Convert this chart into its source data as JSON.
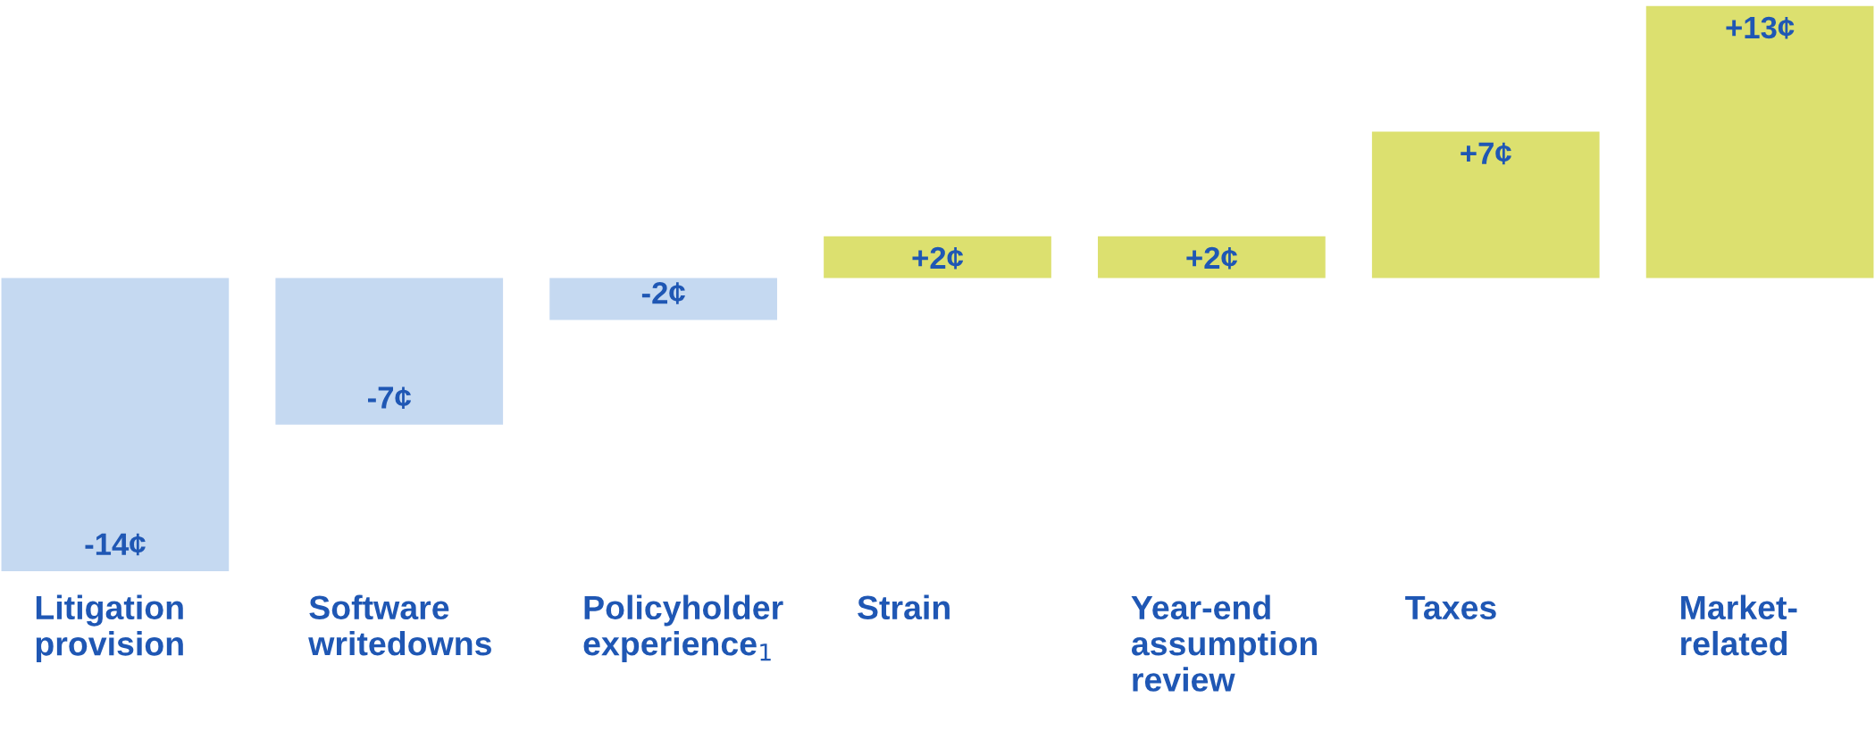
{
  "chart_data": {
    "type": "bar",
    "categories": [
      "Litigation\nprovision",
      "Software\nwritedowns",
      "Policyholder\nexperience$_{1}$",
      "Strain",
      "Year-end\nassumption\nreview",
      "Taxes",
      "Market-\nrelated"
    ],
    "values": [
      -14,
      -7,
      -2,
      2,
      2,
      7,
      13
    ],
    "colors": [
      "#c5d9f1",
      "#c5d9f1",
      "#c5d9f1",
      "#dce06f",
      "#dce06f",
      "#dce06f",
      "#dce06f"
    ],
    "value_labels": [
      "-14¢",
      "-7¢",
      "-2¢",
      "+2¢",
      "+2¢",
      "+7¢",
      "+13¢"
    ]
  }
}
